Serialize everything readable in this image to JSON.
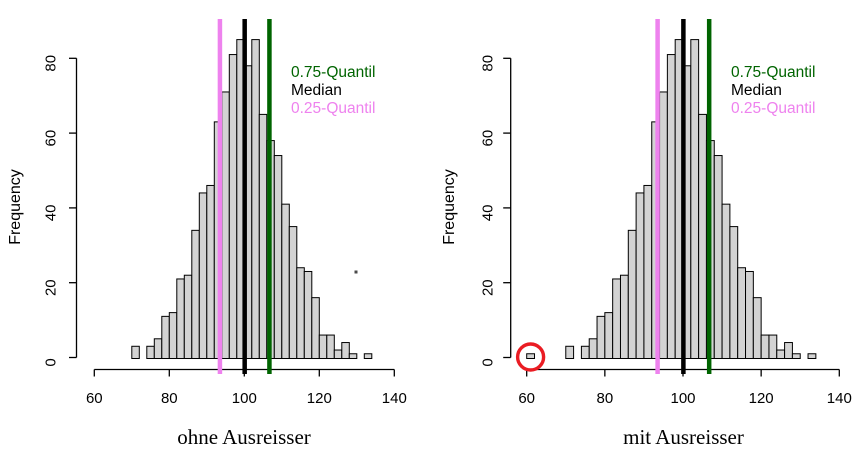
{
  "chart_data": [
    {
      "type": "bar",
      "subtype": "histogram",
      "title": "",
      "xlabel": "ohne Ausreisser",
      "ylabel": "Frequency",
      "xlim": [
        60,
        140
      ],
      "ylim": [
        0,
        80
      ],
      "xticks": [
        60,
        80,
        100,
        120,
        140
      ],
      "yticks": [
        0,
        20,
        40,
        60,
        80
      ],
      "grid": false,
      "bar_fill": "#d3d3d3",
      "bar_stroke": "#000000",
      "bin_start": 70,
      "bin_width": 2,
      "counts": [
        3,
        0,
        3,
        5,
        11,
        12,
        21,
        22,
        34,
        44,
        46,
        63,
        71,
        81,
        85,
        78,
        85,
        65,
        58,
        54,
        41,
        35,
        24,
        23,
        16,
        6,
        6,
        2,
        4,
        1,
        0,
        1
      ],
      "quantile_lines": [
        {
          "name": "q75",
          "value": 106.7,
          "color": "#006400"
        },
        {
          "name": "median",
          "value": 100.1,
          "color": "#000000"
        },
        {
          "name": "q25",
          "value": 93.5,
          "color": "#EE82EE"
        }
      ],
      "legend": [
        {
          "label": "0.75-Quantil",
          "color": "#006400"
        },
        {
          "label": "Median",
          "color": "#000000"
        },
        {
          "label": "0.25-Quantil",
          "color": "#EE82EE"
        }
      ],
      "legend_position": "upper-right-inside",
      "outlier_circle": null,
      "stray_mark": true
    },
    {
      "type": "bar",
      "subtype": "histogram",
      "title": "",
      "xlabel": "mit Ausreisser",
      "ylabel": "Frequency",
      "xlim": [
        60,
        140
      ],
      "ylim": [
        0,
        80
      ],
      "xticks": [
        60,
        80,
        100,
        120,
        140
      ],
      "yticks": [
        0,
        20,
        40,
        60,
        80
      ],
      "grid": false,
      "bar_fill": "#d3d3d3",
      "bar_stroke": "#000000",
      "bin_start": 60,
      "bin_width": 2,
      "counts": [
        1,
        0,
        0,
        0,
        0,
        3,
        0,
        3,
        5,
        11,
        12,
        21,
        22,
        34,
        44,
        46,
        63,
        71,
        81,
        85,
        78,
        85,
        65,
        58,
        54,
        41,
        35,
        24,
        23,
        16,
        6,
        6,
        2,
        4,
        1,
        0,
        1
      ],
      "quantile_lines": [
        {
          "name": "q75",
          "value": 106.7,
          "color": "#006400"
        },
        {
          "name": "median",
          "value": 100.1,
          "color": "#000000"
        },
        {
          "name": "q25",
          "value": 93.5,
          "color": "#EE82EE"
        }
      ],
      "legend": [
        {
          "label": "0.75-Quantil",
          "color": "#006400"
        },
        {
          "label": "Median",
          "color": "#000000"
        },
        {
          "label": "0.25-Quantil",
          "color": "#EE82EE"
        }
      ],
      "legend_position": "upper-right-inside",
      "outlier_circle": {
        "bin_index": 0,
        "center_value": 61,
        "color": "#EA1C23",
        "note": "outlier bin highlighted with red circle"
      },
      "stray_mark": false
    }
  ]
}
